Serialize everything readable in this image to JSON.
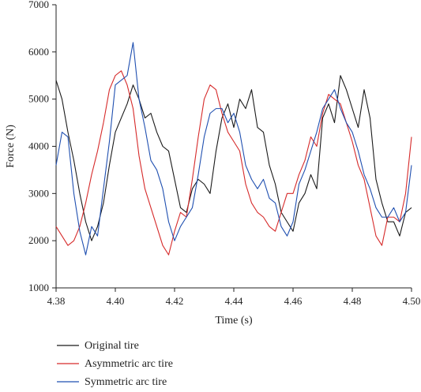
{
  "chart_data": {
    "type": "line",
    "xlabel": "Time (s)",
    "ylabel": "Force (N)",
    "xlim": [
      4.38,
      4.5
    ],
    "ylim": [
      1000,
      7000
    ],
    "xticks": [
      "4.38",
      "4.40",
      "4.42",
      "4.44",
      "4.46",
      "4.48",
      "4.50"
    ],
    "yticks": [
      "1000",
      "2000",
      "3000",
      "4000",
      "5000",
      "6000",
      "7000"
    ],
    "grid": false,
    "legend_position": "bottom-left",
    "series": [
      {
        "name": "Original tire",
        "color": "#1a1a1a",
        "x": [
          4.38,
          4.382,
          4.384,
          4.386,
          4.388,
          4.39,
          4.392,
          4.394,
          4.396,
          4.398,
          4.4,
          4.402,
          4.404,
          4.406,
          4.408,
          4.41,
          4.412,
          4.414,
          4.416,
          4.418,
          4.42,
          4.422,
          4.424,
          4.426,
          4.428,
          4.43,
          4.432,
          4.434,
          4.436,
          4.438,
          4.44,
          4.442,
          4.444,
          4.446,
          4.448,
          4.45,
          4.452,
          4.454,
          4.456,
          4.458,
          4.46,
          4.462,
          4.464,
          4.466,
          4.468,
          4.47,
          4.472,
          4.474,
          4.476,
          4.478,
          4.48,
          4.482,
          4.484,
          4.486,
          4.488,
          4.49,
          4.492,
          4.494,
          4.496,
          4.498,
          4.5
        ],
        "y": [
          5400,
          5000,
          4300,
          3700,
          3000,
          2400,
          2000,
          2300,
          2800,
          3600,
          4300,
          4600,
          4900,
          5300,
          5000,
          4600,
          4700,
          4300,
          4000,
          3900,
          3300,
          2700,
          2600,
          3100,
          3300,
          3200,
          3000,
          3900,
          4600,
          4900,
          4400,
          5000,
          4800,
          5200,
          4400,
          4300,
          3600,
          3200,
          2600,
          2400,
          2200,
          2800,
          3000,
          3400,
          3100,
          4600,
          4900,
          4500,
          5500,
          5200,
          4800,
          4400,
          5200,
          4600,
          3300,
          2800,
          2400,
          2400,
          2100,
          2600,
          2700
        ]
      },
      {
        "name": "Asymmetric arc tire",
        "color": "#d62a2a",
        "x": [
          4.38,
          4.382,
          4.384,
          4.386,
          4.388,
          4.39,
          4.392,
          4.394,
          4.396,
          4.398,
          4.4,
          4.402,
          4.404,
          4.406,
          4.408,
          4.41,
          4.412,
          4.414,
          4.416,
          4.418,
          4.42,
          4.422,
          4.424,
          4.426,
          4.428,
          4.43,
          4.432,
          4.434,
          4.436,
          4.438,
          4.44,
          4.442,
          4.444,
          4.446,
          4.448,
          4.45,
          4.452,
          4.454,
          4.456,
          4.458,
          4.46,
          4.462,
          4.464,
          4.466,
          4.468,
          4.47,
          4.472,
          4.474,
          4.476,
          4.478,
          4.48,
          4.482,
          4.484,
          4.486,
          4.488,
          4.49,
          4.492,
          4.494,
          4.496,
          4.498,
          4.5
        ],
        "y": [
          2300,
          2100,
          1900,
          2000,
          2300,
          2800,
          3400,
          3900,
          4500,
          5200,
          5500,
          5600,
          5300,
          4800,
          3800,
          3100,
          2700,
          2300,
          1900,
          1700,
          2200,
          2600,
          2500,
          3300,
          4200,
          5000,
          5300,
          5200,
          4700,
          4300,
          4100,
          3900,
          3200,
          2800,
          2600,
          2500,
          2300,
          2200,
          2600,
          3000,
          3000,
          3400,
          3700,
          4200,
          4000,
          4700,
          5100,
          5000,
          4900,
          4500,
          4100,
          3600,
          3300,
          2700,
          2100,
          1900,
          2500,
          2500,
          2400,
          3000,
          4200
        ]
      },
      {
        "name": "Symmetric arc tire",
        "color": "#1f4fb0",
        "x": [
          4.38,
          4.382,
          4.384,
          4.386,
          4.388,
          4.39,
          4.392,
          4.394,
          4.396,
          4.398,
          4.4,
          4.402,
          4.404,
          4.406,
          4.408,
          4.41,
          4.412,
          4.414,
          4.416,
          4.418,
          4.42,
          4.422,
          4.424,
          4.426,
          4.428,
          4.43,
          4.432,
          4.434,
          4.436,
          4.438,
          4.44,
          4.442,
          4.444,
          4.446,
          4.448,
          4.45,
          4.452,
          4.454,
          4.456,
          4.458,
          4.46,
          4.462,
          4.464,
          4.466,
          4.468,
          4.47,
          4.472,
          4.474,
          4.476,
          4.478,
          4.48,
          4.482,
          4.484,
          4.486,
          4.488,
          4.49,
          4.492,
          4.494,
          4.496,
          4.498,
          4.5
        ],
        "y": [
          3600,
          4300,
          4200,
          3000,
          2200,
          1700,
          2300,
          2100,
          3100,
          4100,
          5300,
          5400,
          5500,
          6200,
          5000,
          4400,
          3700,
          3500,
          3100,
          2400,
          2000,
          2300,
          2500,
          2700,
          3400,
          4200,
          4700,
          4800,
          4800,
          4500,
          4700,
          4300,
          3600,
          3300,
          3100,
          3300,
          2900,
          2800,
          2300,
          2100,
          2400,
          3200,
          3500,
          3900,
          4300,
          4800,
          5000,
          5200,
          4800,
          4500,
          4300,
          3900,
          3400,
          3100,
          2700,
          2500,
          2500,
          2700,
          2400,
          2600,
          3600
        ]
      }
    ]
  }
}
